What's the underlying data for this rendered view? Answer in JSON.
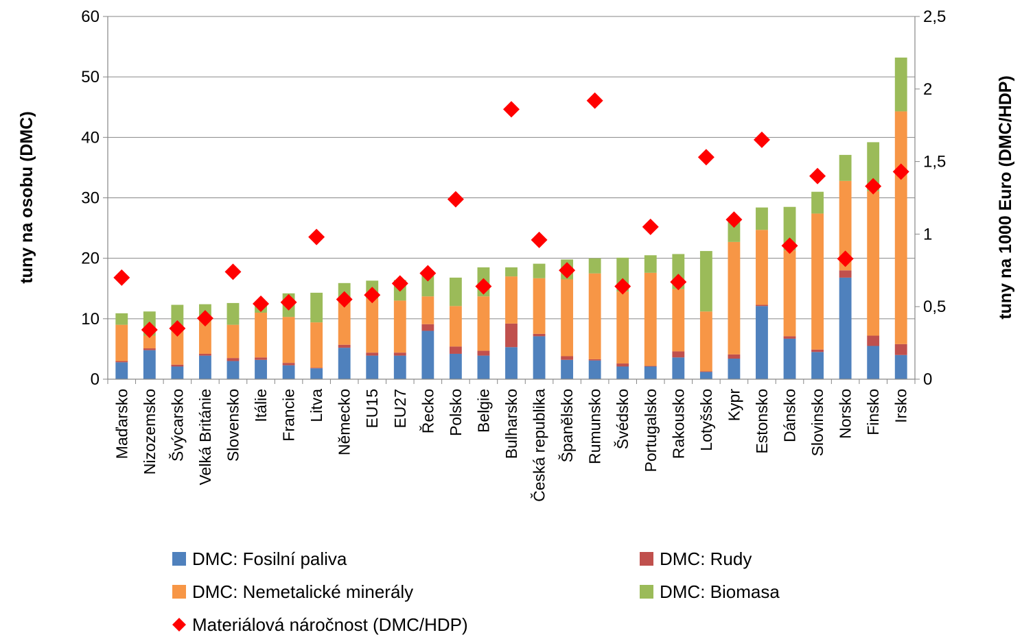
{
  "chart_data": {
    "type": "bar",
    "stacked": true,
    "title": "",
    "xlabel": "",
    "ylabel": "tuny na osobu (DMC)",
    "ylabel_right": "tuny na 1000 Euro (DMC/HDP)",
    "ylim": [
      0,
      60
    ],
    "yticks": [
      "0",
      "10",
      "20",
      "30",
      "40",
      "50",
      "60"
    ],
    "ylim_right": [
      0,
      2.5
    ],
    "yticks_right": [
      "0",
      "0,5",
      "1",
      "1,5",
      "2",
      "2,5"
    ],
    "grid": true,
    "legend_position": "bottom",
    "categories": [
      "Maďarsko",
      "Nizozemsko",
      "Švýcarsko",
      "Velká Británie",
      "Slovensko",
      "Itálie",
      "Francie",
      "Litva",
      "Německo",
      "EU15",
      "EU27",
      "Řecko",
      "Polsko",
      "Belgie",
      "Bulharsko",
      "Česká republika",
      "Španělsko",
      "Rumunsko",
      "Švédsko",
      "Portugalsko",
      "Rakousko",
      "Lotyšsko",
      "Kypr",
      "Estonsko",
      "Dánsko",
      "Slovinsko",
      "Norsko",
      "Finsko",
      "Irsko"
    ],
    "series": [
      {
        "name": "DMC: Fosilní paliva",
        "type": "bar",
        "axis": "left",
        "color": "#4f81bd",
        "values": [
          2.8,
          4.8,
          2.1,
          3.9,
          3.0,
          3.2,
          2.3,
          1.8,
          5.2,
          3.9,
          3.9,
          8.0,
          4.2,
          3.9,
          5.3,
          7.1,
          3.2,
          3.1,
          2.1,
          2.1,
          3.6,
          1.2,
          3.4,
          12.1,
          6.7,
          4.5,
          16.8,
          5.5,
          4.0
        ]
      },
      {
        "name": "DMC: Rudy",
        "type": "bar",
        "axis": "left",
        "color": "#c0504d",
        "values": [
          0.2,
          0.3,
          0.3,
          0.3,
          0.5,
          0.4,
          0.4,
          0.1,
          0.5,
          0.5,
          0.5,
          1.1,
          1.2,
          0.8,
          3.9,
          0.4,
          0.6,
          0.2,
          0.5,
          0.1,
          1.0,
          0.1,
          0.7,
          0.2,
          0.4,
          0.4,
          1.2,
          1.7,
          1.8
        ]
      },
      {
        "name": "DMC: Nemetalické minerály",
        "type": "bar",
        "axis": "left",
        "color": "#f79646",
        "values": [
          6.0,
          2.1,
          5.5,
          5.4,
          5.5,
          7.4,
          7.6,
          7.5,
          7.8,
          8.9,
          8.6,
          4.6,
          6.7,
          9.0,
          7.8,
          9.2,
          12.7,
          14.2,
          11.9,
          15.4,
          10.3,
          9.9,
          18.6,
          12.4,
          14.2,
          22.5,
          14.8,
          23.9,
          38.5
        ]
      },
      {
        "name": "DMC: Biomasa",
        "type": "bar",
        "axis": "left",
        "color": "#9bbb59",
        "values": [
          1.9,
          4.0,
          4.4,
          2.8,
          3.6,
          1.6,
          3.9,
          4.9,
          2.4,
          3.0,
          3.4,
          4.2,
          4.7,
          4.8,
          1.5,
          2.4,
          3.3,
          2.5,
          5.6,
          2.9,
          5.8,
          10.0,
          3.3,
          3.7,
          7.2,
          3.6,
          4.3,
          8.1,
          8.9
        ]
      },
      {
        "name": "Materiálová náročnost (DMC/HDP)",
        "type": "scatter",
        "axis": "right",
        "color": "#ff0000",
        "marker": "diamond",
        "values": [
          0.7,
          0.34,
          0.35,
          0.42,
          0.74,
          0.52,
          0.53,
          0.98,
          0.55,
          0.58,
          0.66,
          0.73,
          1.24,
          0.64,
          1.86,
          0.96,
          0.75,
          1.92,
          0.64,
          1.05,
          0.67,
          1.53,
          1.1,
          1.65,
          0.92,
          1.4,
          0.83,
          1.33,
          1.43
        ]
      }
    ]
  }
}
